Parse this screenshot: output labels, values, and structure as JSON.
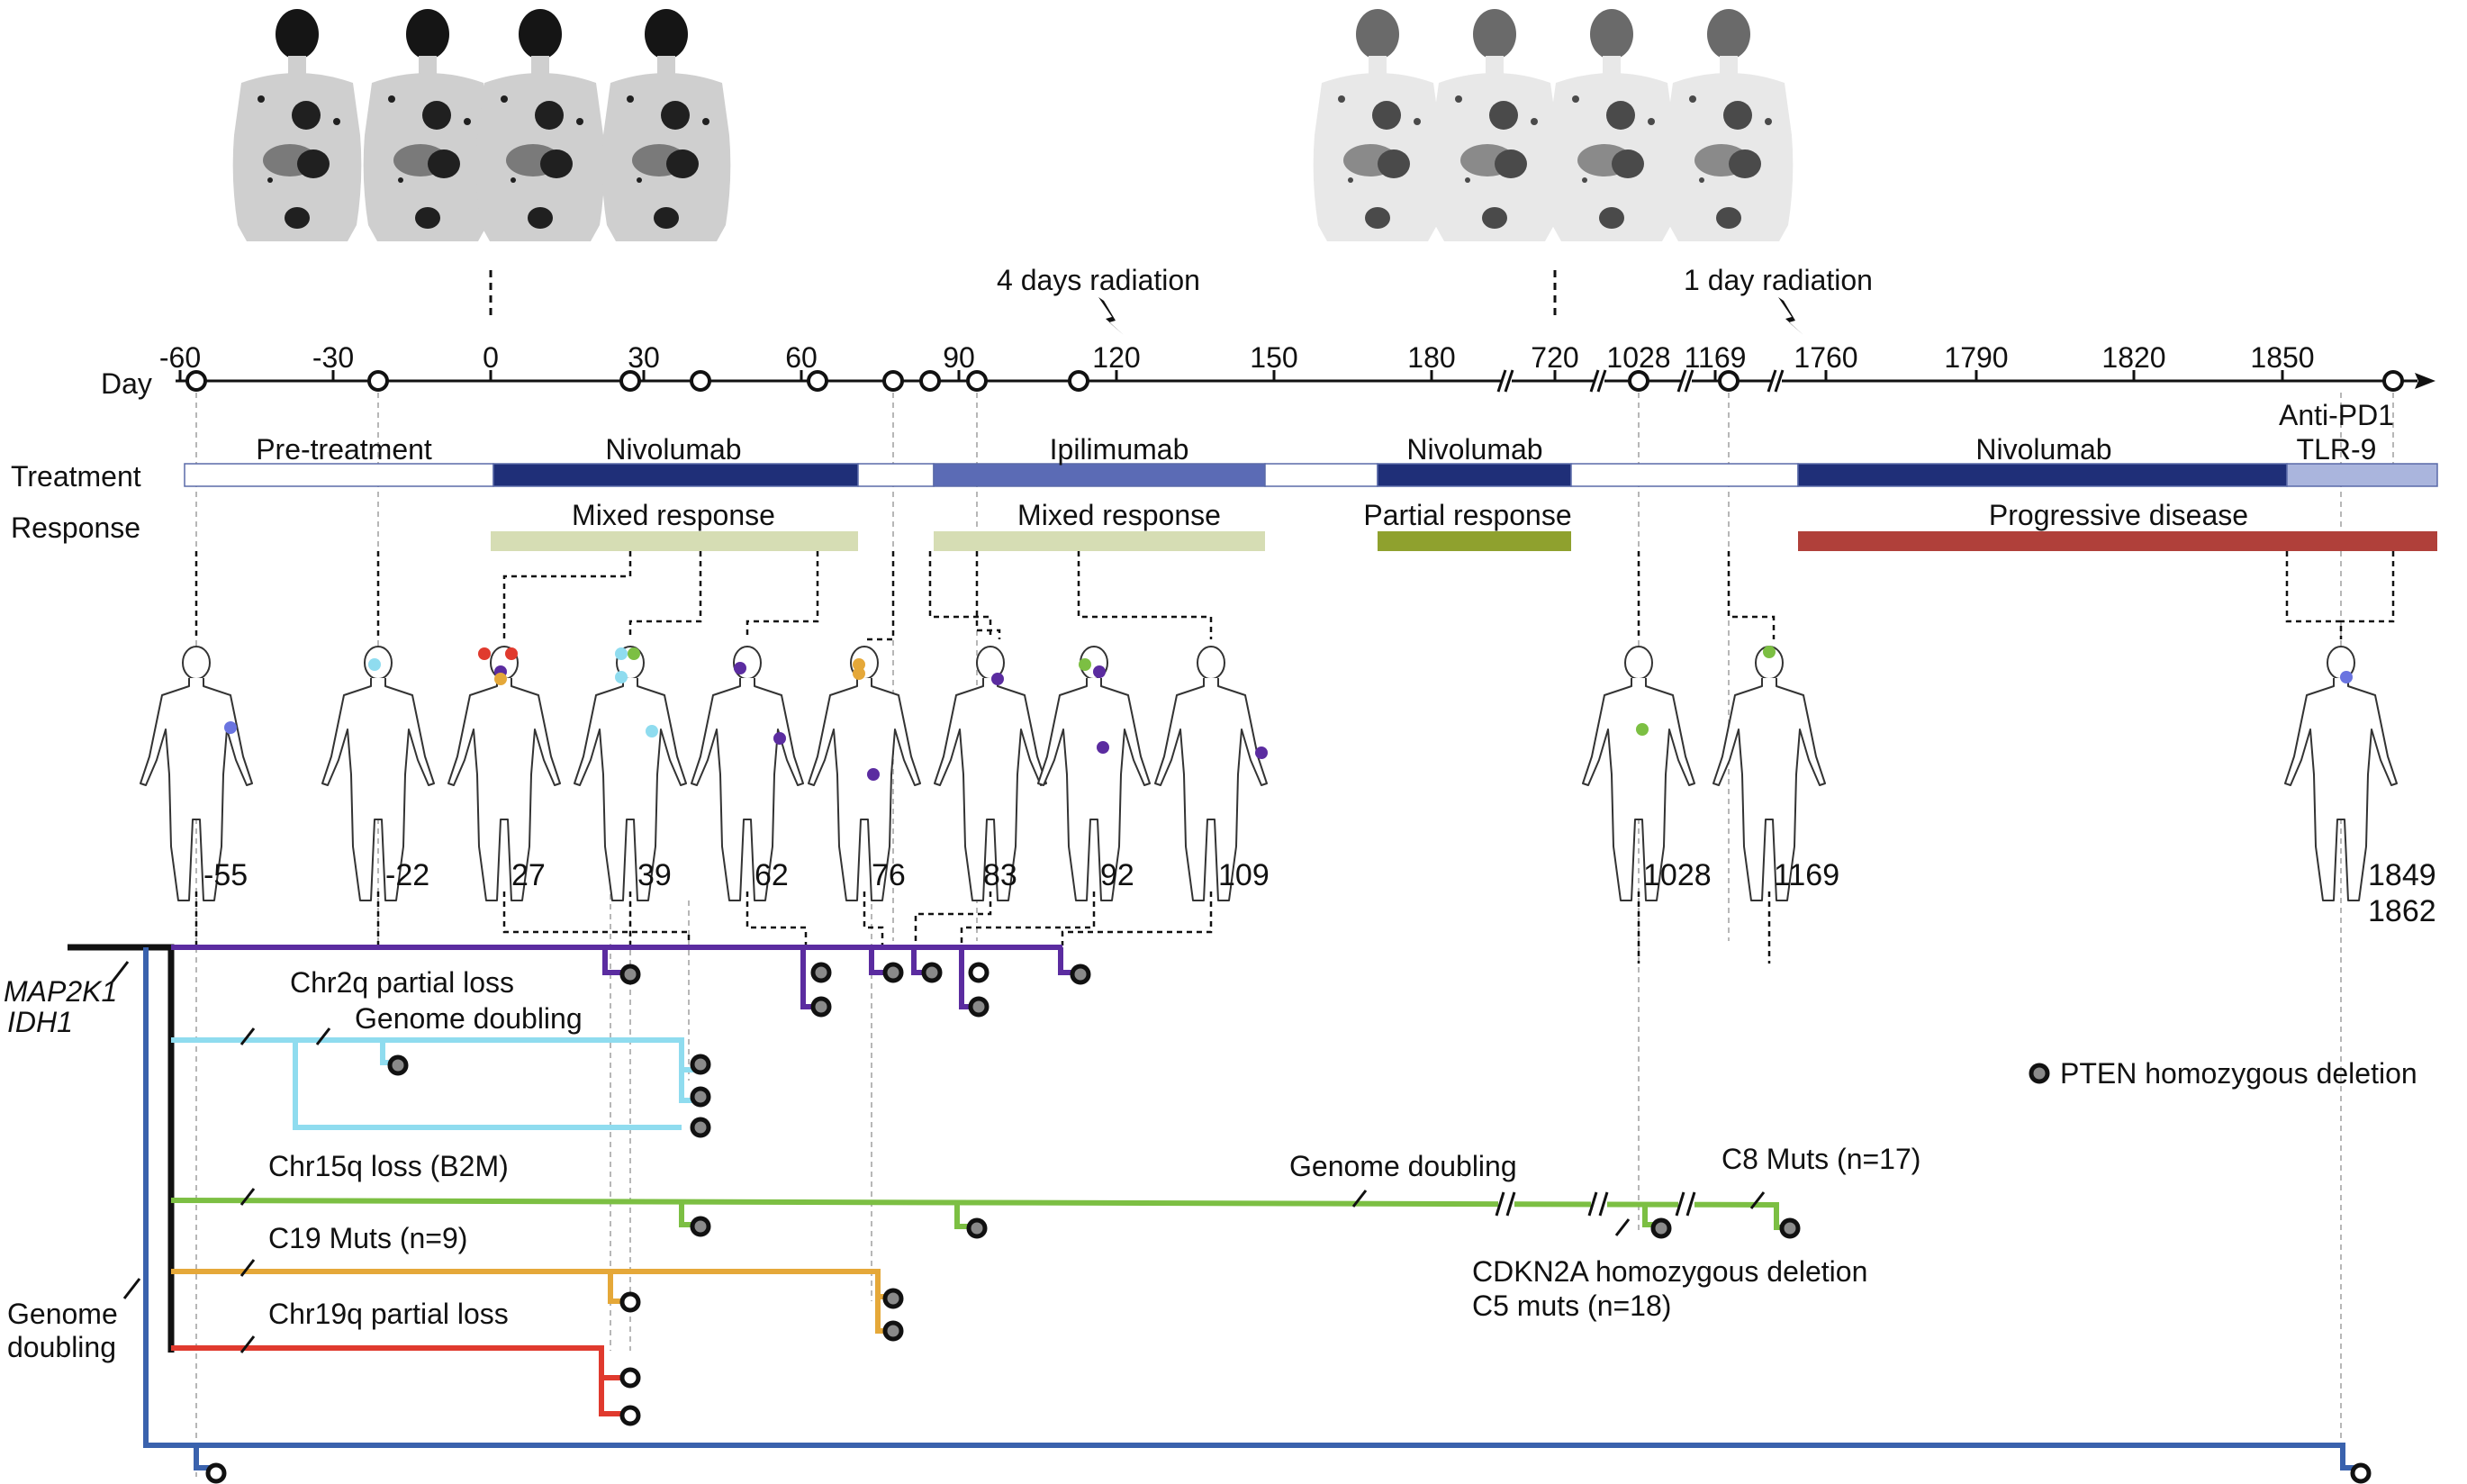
{
  "labels": {
    "day": "Day",
    "treatment": "Treatment",
    "response": "Response",
    "mutations": [
      "MAP2K1",
      "IDH1"
    ],
    "genome_doubling_trunk": [
      "Genome",
      "doubling"
    ]
  },
  "radiation": [
    {
      "text": "4 days radiation"
    },
    {
      "text": "1 day radiation"
    }
  ],
  "ticks": [
    "-60",
    "-30",
    "0",
    "30",
    "60",
    "90",
    "120",
    "150",
    "180",
    "720",
    "1028",
    "1169",
    "1760",
    "1790",
    "1820",
    "1850"
  ],
  "treatments": [
    {
      "label": "Pre-treatment",
      "color": "#ffffff"
    },
    {
      "label": "Nivolumab",
      "color": "#1f2f78"
    },
    {
      "label": "",
      "color": "#ffffff"
    },
    {
      "label": "Ipilimumab",
      "color": "#5b6bb5"
    },
    {
      "label": "",
      "color": "#ffffff"
    },
    {
      "label": "Nivolumab",
      "color": "#1f2f78"
    },
    {
      "label": "",
      "color": "#ffffff"
    },
    {
      "label": "Nivolumab",
      "color": "#1f2f78"
    },
    {
      "label": "Anti-PD1 TLR-9",
      "lines": [
        "Anti-PD1",
        "TLR-9"
      ],
      "color": "#aab5dd"
    }
  ],
  "responses": [
    {
      "label": "Mixed response",
      "color": "#d6ddb4"
    },
    {
      "label": "Mixed response",
      "color": "#d6ddb4"
    },
    {
      "label": "Partial response",
      "color": "#8fa12e"
    },
    {
      "label": "Progressive disease",
      "color": "#b0403a"
    }
  ],
  "samples": [
    {
      "day": "-55"
    },
    {
      "day": "-22"
    },
    {
      "day": "27"
    },
    {
      "day": "39"
    },
    {
      "day": "62"
    },
    {
      "day": "76"
    },
    {
      "day": "83"
    },
    {
      "day": "92"
    },
    {
      "day": "109"
    },
    {
      "day": "1028"
    },
    {
      "day": "1169"
    },
    {
      "day": "1849"
    },
    {
      "day": "1862"
    }
  ],
  "clones": [
    {
      "name": "purple",
      "color": "#5b2ca0"
    },
    {
      "name": "cyan",
      "color": "#8fdcef"
    },
    {
      "name": "green",
      "color": "#7cbf43"
    },
    {
      "name": "orange",
      "color": "#e5a839"
    },
    {
      "name": "red",
      "color": "#e03a2e"
    },
    {
      "name": "blue",
      "color": "#3a62ad"
    }
  ],
  "tree_labels": [
    {
      "text": "Chr2q partial loss"
    },
    {
      "text": "Genome doubling"
    },
    {
      "text": "Chr15q loss (B2M)"
    },
    {
      "text": "Genome doubling"
    },
    {
      "text": "C8 Muts (n=17)"
    },
    {
      "text": "C19 Muts (n=9)"
    },
    {
      "text": "Chr19q partial loss"
    },
    {
      "text": "CDKN2A homozygous deletion"
    },
    {
      "text": "C5 muts (n=18)"
    }
  ],
  "legend": {
    "text": "PTEN homozygous deletion"
  }
}
